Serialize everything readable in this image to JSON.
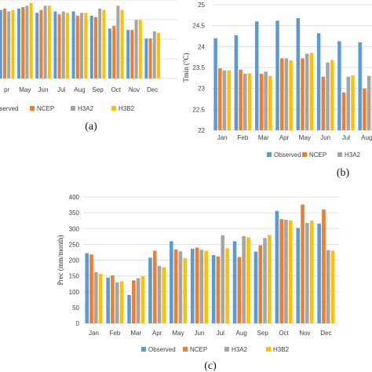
{
  "series_names": [
    "Observed",
    "NCEP",
    "H3A2",
    "H3B2"
  ],
  "colors": [
    "#5b9bd5",
    "#ed7d31",
    "#a5a5a5",
    "#ffc000"
  ],
  "chart_data": [
    {
      "type": "bar",
      "panel_label": "(a)",
      "categories": [
        "Apr",
        "May",
        "Jun",
        "Jul",
        "Aug",
        "Sep",
        "Oct",
        "Nov",
        "Dec"
      ],
      "category_labels": [
        "pr",
        "May",
        "Jun",
        "Jul",
        "Aug",
        "Sep",
        "Oct",
        "Nov",
        "Dec"
      ],
      "ylim": [
        28.0,
        33.5
      ],
      "series": [
        {
          "name": "Observed",
          "values": [
            32.8,
            32.9,
            32.6,
            32.7,
            32.7,
            32.4,
            31.5,
            31.4,
            30.8
          ]
        },
        {
          "name": "NCEP",
          "values": [
            32.9,
            33.0,
            32.8,
            32.5,
            32.4,
            32.3,
            31.7,
            31.4,
            30.8
          ]
        },
        {
          "name": "H3A2",
          "values": [
            32.7,
            33.1,
            33.1,
            32.7,
            32.6,
            32.9,
            33.1,
            32.1,
            31.3
          ]
        },
        {
          "name": "H3B2",
          "values": [
            32.8,
            33.3,
            33.1,
            32.6,
            32.6,
            32.8,
            32.8,
            32.1,
            31.2
          ]
        }
      ],
      "legend_labels": [
        "bserved",
        "NCEP",
        "H3A2",
        "H3B2"
      ]
    },
    {
      "type": "bar",
      "panel_label": "(b)",
      "ylabel": "Tmin (°C)",
      "ylim": [
        22,
        25
      ],
      "yticks": [
        "22",
        "22.5",
        "23",
        "23.5",
        "24",
        "24.5",
        "25"
      ],
      "categories": [
        "Jan",
        "Feb",
        "Mar",
        "Apr",
        "May",
        "Jun",
        "Jul",
        "Aug"
      ],
      "category_labels": [
        "Jan",
        "Feb",
        "Mar",
        "Apr",
        "May",
        "Jun",
        "Jul",
        "Aug"
      ],
      "series": [
        {
          "name": "Observed",
          "values": [
            24.2,
            24.27,
            24.6,
            24.62,
            24.68,
            24.32,
            24.13,
            24.1
          ]
        },
        {
          "name": "NCEP",
          "values": [
            23.48,
            23.45,
            23.35,
            23.72,
            23.72,
            23.28,
            22.9,
            23.0
          ]
        },
        {
          "name": "H3A2",
          "values": [
            23.43,
            23.35,
            23.4,
            23.72,
            23.83,
            23.62,
            23.28,
            23.3
          ]
        },
        {
          "name": "H3B2",
          "values": [
            23.43,
            23.36,
            23.3,
            23.67,
            23.85,
            23.68,
            23.31,
            23.3
          ]
        }
      ],
      "legend_labels": [
        "Observed",
        "NCEP",
        "H3A2"
      ]
    },
    {
      "type": "bar",
      "panel_label": "(c)",
      "ylabel": "Prec (mm/month)",
      "ylim": [
        0,
        400
      ],
      "yticks": [
        "0",
        "50",
        "100",
        "150",
        "200",
        "250",
        "300",
        "350",
        "400"
      ],
      "categories": [
        "Jan",
        "Feb",
        "Mar",
        "Apr",
        "May",
        "Jun",
        "Jul",
        "Aug",
        "Sep",
        "Oct",
        "Nov",
        "Dec"
      ],
      "category_labels": [
        "Jan",
        "Feb",
        "Mar",
        "Apr",
        "May",
        "Jun",
        "Jul",
        "Aug",
        "Sep",
        "Oct",
        "Nov",
        "Dec"
      ],
      "series": [
        {
          "name": "Observed",
          "values": [
            222,
            145,
            90,
            208,
            260,
            236,
            216,
            260,
            227,
            356,
            302,
            316
          ]
        },
        {
          "name": "NCEP",
          "values": [
            218,
            152,
            136,
            230,
            234,
            240,
            212,
            210,
            247,
            330,
            376,
            360
          ]
        },
        {
          "name": "H3A2",
          "values": [
            162,
            130,
            143,
            182,
            228,
            233,
            279,
            276,
            270,
            328,
            318,
            232
          ]
        },
        {
          "name": "H3B2",
          "values": [
            157,
            133,
            150,
            178,
            207,
            230,
            238,
            272,
            280,
            326,
            325,
            230
          ]
        }
      ],
      "legend_labels": [
        "Observed",
        "NCEP",
        "H3A2",
        "H3B2"
      ]
    }
  ]
}
